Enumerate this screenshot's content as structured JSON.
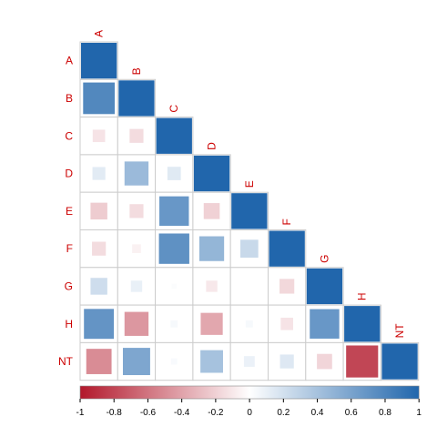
{
  "chart_data": {
    "type": "heatmap",
    "variables": [
      "A",
      "B",
      "C",
      "D",
      "E",
      "F",
      "G",
      "H",
      "NT"
    ],
    "matrix_layout": "lower-triangular",
    "correlations": [
      [
        1.0
      ],
      [
        0.78,
        1.0
      ],
      [
        -0.12,
        -0.15,
        1.0
      ],
      [
        0.13,
        0.45,
        0.14,
        1.0
      ],
      [
        -0.22,
        -0.15,
        0.68,
        -0.2,
        1.0
      ],
      [
        -0.15,
        -0.06,
        0.72,
        0.48,
        0.25,
        1.0
      ],
      [
        0.22,
        0.1,
        0.02,
        -0.1,
        0.0,
        -0.17,
        1.0
      ],
      [
        0.7,
        -0.45,
        0.04,
        -0.38,
        0.04,
        -0.12,
        0.68,
        1.0
      ],
      [
        -0.5,
        0.58,
        0.03,
        0.4,
        0.09,
        0.15,
        -0.18,
        -0.8,
        1.0
      ]
    ],
    "colorbar": {
      "range": [
        -1,
        1
      ],
      "ticks": [
        "-1",
        "-0.8",
        "-0.6",
        "-0.4",
        "-0.2",
        "0",
        "0.2",
        "0.4",
        "0.6",
        "0.8",
        "1"
      ],
      "low_color": "#b2182b",
      "mid_color": "#ffffff",
      "high_color": "#2166ac"
    },
    "label_color": "#cc0000",
    "glyph": "square"
  }
}
